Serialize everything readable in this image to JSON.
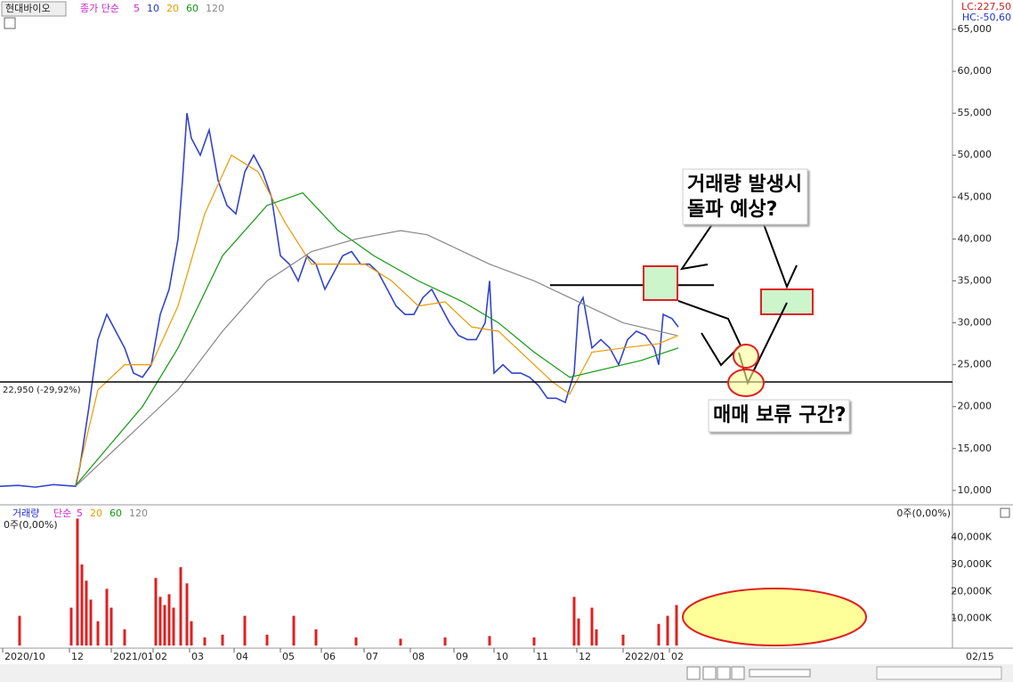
{
  "header": {
    "name": "현대바이오",
    "indicator": "종가 단순",
    "periods": [
      "5",
      "10",
      "20",
      "60",
      "120"
    ],
    "period_colors": [
      "#cc22cc",
      "#2233cc",
      "#e89a00",
      "#119911",
      "#888888"
    ],
    "lc": "LC:227,50",
    "hc": "HC:-50,60"
  },
  "chart_data": [
    {
      "type": "line",
      "xlim": [
        0,
        1070
      ],
      "ylim": [
        8500,
        66700
      ],
      "yticks": [
        {
          "value": 10000,
          "label": "10,000"
        },
        {
          "value": 15000,
          "label": "15,000"
        },
        {
          "value": 20000,
          "label": "20,000"
        },
        {
          "value": 25000,
          "label": "25,000"
        },
        {
          "value": 30000,
          "label": "30,000"
        },
        {
          "value": 35000,
          "label": "35,000"
        },
        {
          "value": 40000,
          "label": "40,000"
        },
        {
          "value": 45000,
          "label": "45,000"
        },
        {
          "value": 50000,
          "label": "50,000"
        },
        {
          "value": 55000,
          "label": "55,000"
        },
        {
          "value": 60000,
          "label": "60,000"
        },
        {
          "value": 65000,
          "label": "65,000"
        }
      ],
      "series": [
        {
          "color": "#3344cc",
          "x": [
            0,
            20,
            40,
            60,
            85,
            90,
            100,
            110,
            120,
            130,
            140,
            150,
            160,
            170,
            180,
            190,
            200,
            205,
            210,
            215,
            225,
            235,
            245,
            255,
            265,
            275,
            285,
            295,
            305,
            315,
            325,
            335,
            345,
            355,
            365,
            375,
            385,
            395,
            405,
            415,
            425,
            435,
            445,
            455,
            465,
            475,
            485,
            495,
            505,
            515,
            525,
            535,
            545,
            550,
            555,
            565,
            575,
            585,
            595,
            605,
            615,
            625,
            635,
            645,
            650,
            655,
            665,
            675,
            685,
            695,
            705,
            715,
            725,
            735,
            740,
            745,
            755,
            762
          ],
          "values": [
            10500,
            10600,
            10400,
            10700,
            10500,
            13000,
            20000,
            28000,
            31000,
            29000,
            27000,
            24000,
            23500,
            25000,
            31000,
            34000,
            40000,
            47000,
            55000,
            52000,
            50000,
            53000,
            47000,
            44000,
            43000,
            48000,
            50000,
            48000,
            45000,
            38000,
            37000,
            35000,
            38000,
            37000,
            34000,
            36000,
            38000,
            38500,
            37000,
            37000,
            36000,
            34000,
            32000,
            31000,
            31000,
            33000,
            34000,
            32000,
            30000,
            28500,
            28000,
            28000,
            30000,
            35000,
            24000,
            25000,
            24000,
            24000,
            23500,
            22500,
            21000,
            21000,
            20500,
            24000,
            32000,
            33000,
            27000,
            28000,
            27000,
            25000,
            28000,
            29000,
            28500,
            27000,
            25000,
            31000,
            30500,
            29500
          ]
        },
        {
          "color": "#e89a00",
          "x": [
            85,
            110,
            140,
            170,
            200,
            230,
            260,
            290,
            320,
            350,
            380,
            410,
            440,
            470,
            500,
            530,
            560,
            590,
            620,
            640,
            665,
            700,
            740,
            762
          ],
          "values": [
            10800,
            22000,
            25000,
            25000,
            32000,
            43000,
            50000,
            48000,
            42000,
            37000,
            37000,
            37000,
            35000,
            32000,
            32500,
            29500,
            29000,
            26000,
            23000,
            21500,
            26500,
            27000,
            27500,
            28500
          ]
        },
        {
          "color": "#119911",
          "x": [
            85,
            120,
            160,
            200,
            250,
            300,
            340,
            380,
            420,
            470,
            520,
            560,
            600,
            640,
            680,
            720,
            762
          ],
          "values": [
            10600,
            15000,
            20000,
            27000,
            38000,
            44000,
            45500,
            41000,
            38000,
            35000,
            32500,
            30000,
            26500,
            23500,
            24500,
            25500,
            27000
          ]
        },
        {
          "color": "#888888",
          "x": [
            85,
            150,
            200,
            250,
            300,
            350,
            400,
            450,
            480,
            520,
            550,
            600,
            650,
            700,
            760
          ],
          "values": [
            10500,
            17000,
            22000,
            29000,
            35000,
            38500,
            40000,
            41000,
            40500,
            38500,
            37000,
            35000,
            32500,
            30000,
            28500
          ]
        }
      ],
      "hlines": [
        {
          "value": 22950,
          "label": "22,950 (-29,92%)"
        },
        {
          "value": 34500
        }
      ],
      "callouts": [
        [
          "거래량 발생시",
          "돌파 예상?"
        ],
        "매매 보류 구간?"
      ]
    },
    {
      "type": "bar",
      "xlim": [
        0,
        1070
      ],
      "ylim": [
        0,
        51100
      ],
      "color": "#e02020",
      "title": "거래량",
      "indicator": "단순",
      "periods": [
        "5",
        "20",
        "60",
        "120"
      ],
      "stat": "0주(0,00%)",
      "yticks": [
        {
          "value": 10000,
          "label": "10,000K"
        },
        {
          "value": 20000,
          "label": "20,000K"
        },
        {
          "value": 30000,
          "label": "30,000K"
        },
        {
          "value": 40000,
          "label": "40,000K"
        }
      ],
      "xticks": [
        {
          "value": 3,
          "label": "2020/10"
        },
        {
          "value": 78,
          "label": "12"
        },
        {
          "value": 125,
          "label": "2021/01"
        },
        {
          "value": 172,
          "label": "02"
        },
        {
          "value": 213,
          "label": "03"
        },
        {
          "value": 263,
          "label": "04"
        },
        {
          "value": 315,
          "label": "05"
        },
        {
          "value": 361,
          "label": "06"
        },
        {
          "value": 409,
          "label": "07"
        },
        {
          "value": 461,
          "label": "08"
        },
        {
          "value": 510,
          "label": "09"
        },
        {
          "value": 555,
          "label": "10"
        },
        {
          "value": 600,
          "label": "11"
        },
        {
          "value": 648,
          "label": "12"
        },
        {
          "value": 700,
          "label": "2022/01"
        },
        {
          "value": 752,
          "label": "02"
        }
      ],
      "x": [
        22,
        80,
        87,
        92,
        97,
        102,
        110,
        120,
        125,
        140,
        175,
        180,
        185,
        190,
        195,
        203,
        210,
        215,
        230,
        250,
        275,
        300,
        330,
        355,
        400,
        450,
        500,
        550,
        600,
        645,
        650,
        665,
        670,
        700,
        740,
        750,
        760
      ],
      "values": [
        11000,
        14000,
        47000,
        30000,
        24000,
        17000,
        9000,
        21000,
        14000,
        6000,
        25000,
        18000,
        15000,
        19000,
        14000,
        29000,
        23000,
        9000,
        3000,
        4000,
        11000,
        4000,
        11000,
        6000,
        3000,
        2500,
        3000,
        3500,
        3000,
        18000,
        10000,
        14000,
        6000,
        4000,
        8000,
        11000,
        15000
      ]
    }
  ],
  "footer_date": "02/15"
}
